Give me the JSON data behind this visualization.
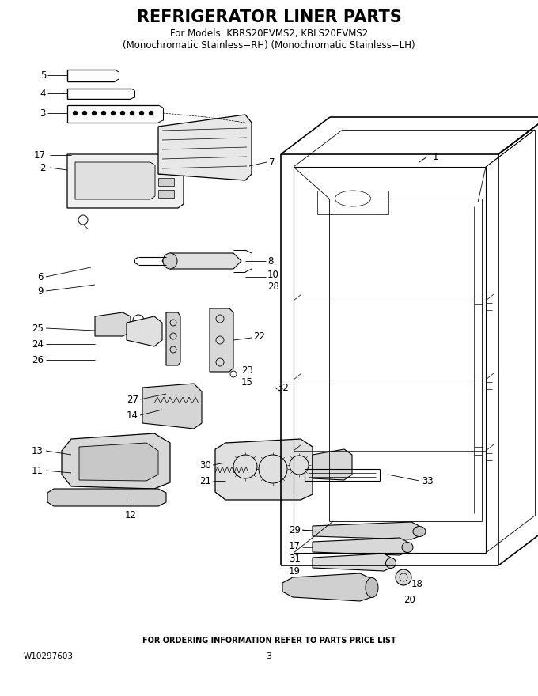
{
  "title": "REFRIGERATOR LINER PARTS",
  "subtitle1": "For Models: KBRS20EVMS2, KBLS20EVMS2",
  "subtitle2": "(Monochromatic Stainless−RH) (Monochromatic Stainless−LH)",
  "footer_left": "W10297603",
  "footer_center": "3",
  "footer_note": "FOR ORDERING INFORMATION REFER TO PARTS PRICE LIST",
  "bg_color": "#ffffff",
  "figsize": [
    6.8,
    8.8
  ],
  "dpi": 100
}
